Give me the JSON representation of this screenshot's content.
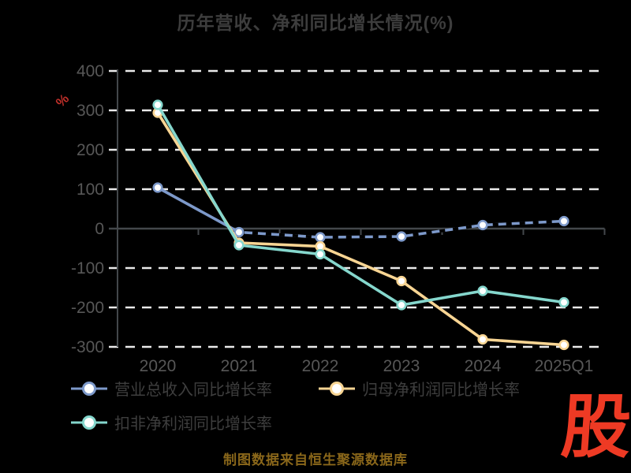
{
  "title": "历年营收、净利同比增长情况(%)",
  "unit_label": "%",
  "source_note": "制图数据来自恒生聚源数据库",
  "logo_text": "股",
  "colors": {
    "background": "#000000",
    "title": "#3d3d3d",
    "tick_label": "#575757",
    "legend_label": "#3e3e3e",
    "grid": "#eaeaea",
    "axis": "#43474b",
    "unit_label": "#c0302a",
    "source_note": "#8a671a",
    "logo": "#ee3a24",
    "revenue": "#7d99ca",
    "net_profit": "#f8d593",
    "non_gaap": "#85d7cd",
    "marker_fill": "#ffffff",
    "overlay_dash": "#000000"
  },
  "chart_data": {
    "type": "line",
    "categories": [
      "2020",
      "2021",
      "2022",
      "2023",
      "2024",
      "2025Q1"
    ],
    "yticks": [
      400,
      300,
      200,
      100,
      0,
      -100,
      -200,
      -300
    ],
    "ylim": [
      -300,
      400
    ],
    "grid": "horizontal-dashed-white",
    "legend_position": "bottom-left",
    "series": [
      {
        "name": "营业总收入同比增长率",
        "key": "revenue",
        "style": "solid-with-black-dash-overlay",
        "values": [
          104,
          -9,
          -22,
          -20,
          9,
          19
        ]
      },
      {
        "name": "归母净利润同比增长率",
        "key": "net_profit",
        "style": "solid",
        "values": [
          294,
          -36,
          -45,
          -133,
          -281,
          -295
        ]
      },
      {
        "name": "扣非净利润同比增长率",
        "key": "non_gaap",
        "style": "solid",
        "values": [
          314,
          -42,
          -65,
          -194,
          -158,
          -187
        ]
      }
    ]
  }
}
